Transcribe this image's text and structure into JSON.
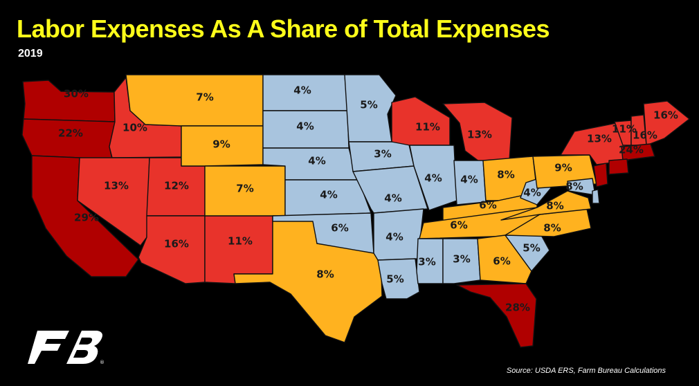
{
  "title": "Labor Expenses As A Share of Total Expenses",
  "subtitle": "2019",
  "source": "Source: USDA ERS, Farm Bureau Calculations",
  "logo_text": "FB",
  "colors": {
    "background": "#000000",
    "title": "#ffff1a",
    "high": "#b00000",
    "upper": "#e8332b",
    "mid": "#ffb21f",
    "low": "#a8c4de"
  },
  "states": [
    {
      "id": "WA",
      "label": "30%",
      "tier": "high"
    },
    {
      "id": "OR",
      "label": "22%",
      "tier": "high"
    },
    {
      "id": "CA",
      "label": "29%",
      "tier": "high"
    },
    {
      "id": "ID",
      "label": "10%",
      "tier": "upper"
    },
    {
      "id": "NV",
      "label": "13%",
      "tier": "upper"
    },
    {
      "id": "UT",
      "label": "12%",
      "tier": "upper"
    },
    {
      "id": "AZ",
      "label": "16%",
      "tier": "upper"
    },
    {
      "id": "NM",
      "label": "11%",
      "tier": "upper"
    },
    {
      "id": "MT",
      "label": "7%",
      "tier": "mid"
    },
    {
      "id": "WY",
      "label": "9%",
      "tier": "mid"
    },
    {
      "id": "CO",
      "label": "7%",
      "tier": "mid"
    },
    {
      "id": "TX",
      "label": "8%",
      "tier": "mid"
    },
    {
      "id": "ND",
      "label": "4%",
      "tier": "low"
    },
    {
      "id": "SD",
      "label": "4%",
      "tier": "low"
    },
    {
      "id": "NE",
      "label": "4%",
      "tier": "low"
    },
    {
      "id": "KS",
      "label": "4%",
      "tier": "low"
    },
    {
      "id": "OK",
      "label": "6%",
      "tier": "low"
    },
    {
      "id": "MN",
      "label": "5%",
      "tier": "low"
    },
    {
      "id": "IA",
      "label": "3%",
      "tier": "low"
    },
    {
      "id": "MO",
      "label": "4%",
      "tier": "low"
    },
    {
      "id": "AR",
      "label": "4%",
      "tier": "low"
    },
    {
      "id": "LA",
      "label": "5%",
      "tier": "low"
    },
    {
      "id": "WI",
      "label": "11%",
      "tier": "upper"
    },
    {
      "id": "MI",
      "label": "13%",
      "tier": "upper"
    },
    {
      "id": "IL",
      "label": "4%",
      "tier": "low"
    },
    {
      "id": "IN",
      "label": "4%",
      "tier": "low"
    },
    {
      "id": "OH",
      "label": "8%",
      "tier": "mid"
    },
    {
      "id": "KY",
      "label": "6%",
      "tier": "mid"
    },
    {
      "id": "TN",
      "label": "6%",
      "tier": "mid"
    },
    {
      "id": "MS",
      "label": "3%",
      "tier": "low"
    },
    {
      "id": "AL",
      "label": "3%",
      "tier": "low"
    },
    {
      "id": "GA",
      "label": "6%",
      "tier": "mid"
    },
    {
      "id": "FL",
      "label": "28%",
      "tier": "high"
    },
    {
      "id": "SC",
      "label": "5%",
      "tier": "low"
    },
    {
      "id": "NC",
      "label": "8%",
      "tier": "mid"
    },
    {
      "id": "VA",
      "label": "8%",
      "tier": "mid"
    },
    {
      "id": "WV",
      "label": "4%",
      "tier": "low"
    },
    {
      "id": "PA",
      "label": "9%",
      "tier": "mid"
    },
    {
      "id": "NY",
      "label": "13%",
      "tier": "upper"
    },
    {
      "id": "VT",
      "label": "11%",
      "tier": "upper"
    },
    {
      "id": "NH",
      "label": "16%",
      "tier": "upper"
    },
    {
      "id": "ME",
      "label": "16%",
      "tier": "upper"
    },
    {
      "id": "MA",
      "label": "24%",
      "tier": "high"
    },
    {
      "id": "NJ",
      "label": "",
      "tier": "high"
    },
    {
      "id": "MD",
      "label": "8%",
      "tier": "low"
    },
    {
      "id": "CT",
      "label": "",
      "tier": "high"
    },
    {
      "id": "DE",
      "label": "",
      "tier": "low"
    }
  ]
}
